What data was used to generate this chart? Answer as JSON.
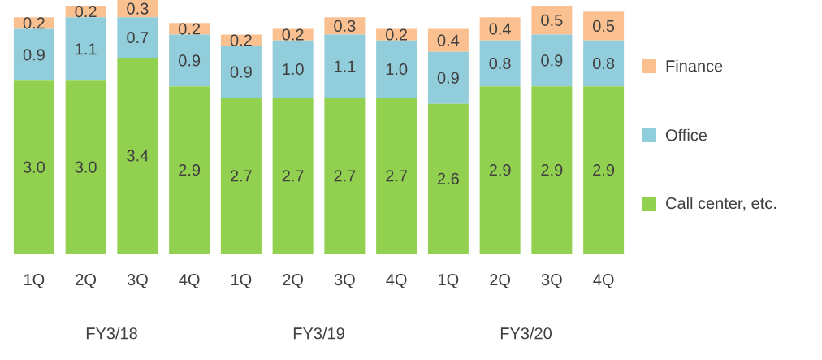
{
  "chart_data": {
    "type": "bar",
    "stacked": true,
    "categories": [
      "1Q",
      "2Q",
      "3Q",
      "4Q",
      "1Q",
      "2Q",
      "3Q",
      "4Q",
      "1Q",
      "2Q",
      "3Q",
      "4Q"
    ],
    "series": [
      {
        "name": "Call center, etc.",
        "color": "#92d050",
        "values": [
          3.0,
          3.0,
          3.4,
          2.9,
          2.7,
          2.7,
          2.7,
          2.7,
          2.6,
          2.9,
          2.9,
          2.9
        ],
        "value_labels": [
          "3.0",
          "3.0",
          "3.4",
          "2.9",
          "2.7",
          "2.7",
          "2.7",
          "2.7",
          "2.6",
          "2.9",
          "2.9",
          "2.9"
        ]
      },
      {
        "name": "Office",
        "color": "#92cddc",
        "values": [
          0.9,
          1.1,
          0.7,
          0.9,
          0.9,
          1.0,
          1.1,
          1.0,
          0.9,
          0.8,
          0.9,
          0.8
        ],
        "value_labels": [
          "0.9",
          "1.1",
          "0.7",
          "0.9",
          "0.9",
          "1.0",
          "1.1",
          "1.0",
          "0.9",
          "0.8",
          "0.9",
          "0.8"
        ]
      },
      {
        "name": "Finance",
        "color": "#fac090",
        "values": [
          0.2,
          0.2,
          0.3,
          0.2,
          0.2,
          0.2,
          0.3,
          0.2,
          0.4,
          0.4,
          0.5,
          0.5
        ],
        "value_labels": [
          "0.2",
          "0.2",
          "0.3",
          "0.2",
          "0.2",
          "0.2",
          "0.3",
          "0.2",
          "0.4",
          "0.4",
          "0.5",
          "0.5"
        ]
      }
    ],
    "annotations": [
      "FY3/18",
      "FY3/19",
      "FY3/20"
    ],
    "legend": "right"
  }
}
